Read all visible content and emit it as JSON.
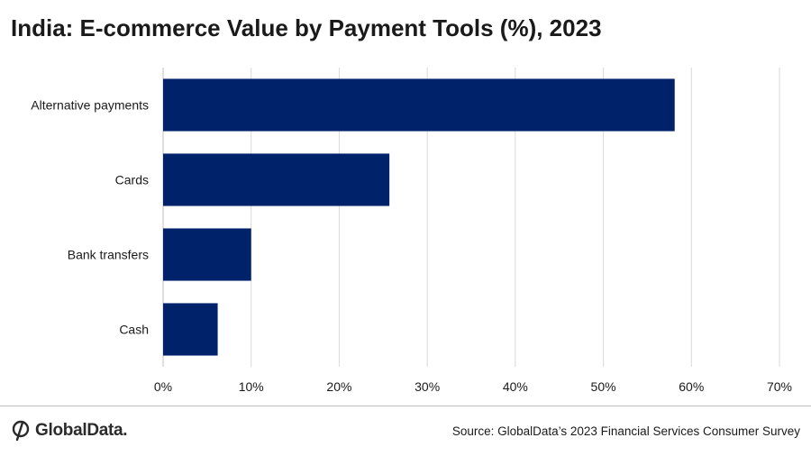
{
  "chart_data": {
    "type": "bar",
    "orientation": "horizontal",
    "title": "India: E-commerce Value by Payment Tools (%), 2023",
    "categories": [
      "Alternative payments",
      "Cards",
      "Bank transfers",
      "Cash"
    ],
    "values": [
      58.1,
      25.7,
      10.0,
      6.2
    ],
    "xlim": [
      0,
      70
    ],
    "xticks": [
      0,
      10,
      20,
      30,
      40,
      50,
      60,
      70
    ],
    "xtick_labels": [
      "0%",
      "10%",
      "20%",
      "30%",
      "40%",
      "50%",
      "60%",
      "70%"
    ],
    "xlabel": "",
    "ylabel": "",
    "grid": "vertical",
    "legend": "none",
    "bar_color": "#00226b"
  },
  "footer": {
    "brand": "GlobalData.",
    "source": "Source: GlobalData’s 2023 Financial Services Consumer Survey"
  },
  "icons": {
    "logo": "globaldata-logo-icon"
  }
}
